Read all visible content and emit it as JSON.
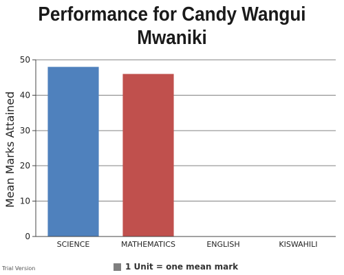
{
  "chart_data": {
    "type": "bar",
    "title": "Performance for Candy Wangui Mwaniki",
    "ylabel": "Mean Marks Attained",
    "xlabel": "",
    "categories": [
      "SCIENCE",
      "MATHEMATICS",
      "ENGLISH",
      "KISWAHILI"
    ],
    "values": [
      48,
      46,
      0,
      0
    ],
    "colors": [
      "#4f81bd",
      "#c0504d",
      "#9bbb59",
      "#8064a2"
    ],
    "ylim": [
      0,
      50
    ],
    "yticks": [
      0,
      10,
      20,
      30,
      40,
      50
    ],
    "grid": true,
    "legend": {
      "label": "1 Unit = one mean mark",
      "color": "#7f7f7f",
      "position": "bottom"
    }
  },
  "watermark": "Trial Version"
}
